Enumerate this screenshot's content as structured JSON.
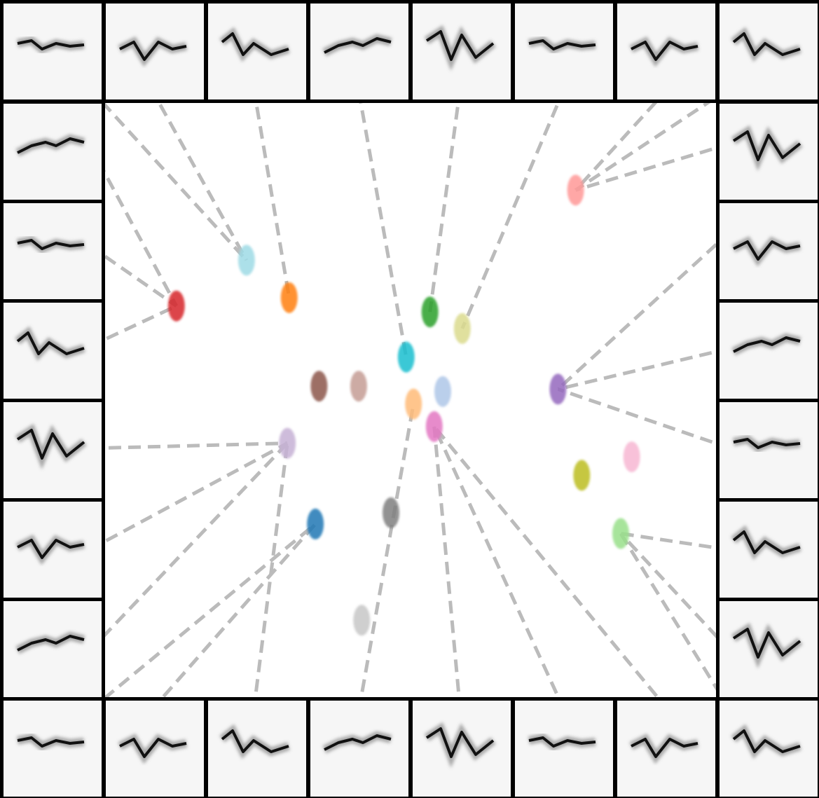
{
  "chart_data": {
    "type": "scatter",
    "xlim": [
      0,
      100
    ],
    "ylim": [
      0,
      100
    ],
    "series": [
      {
        "color": "#ff9896",
        "x": [
          77.2
        ],
        "values": [
          85.1
        ]
      },
      {
        "color": "#9edae5",
        "x": [
          23.2
        ],
        "values": [
          73.3
        ]
      },
      {
        "color": "#ff7f0e",
        "x": [
          30.2
        ],
        "values": [
          67.0
        ]
      },
      {
        "color": "#d62728",
        "x": [
          11.7
        ],
        "values": [
          65.6
        ]
      },
      {
        "color": "#2ca02c",
        "x": [
          53.3
        ],
        "values": [
          64.6
        ]
      },
      {
        "color": "#dbdb8d",
        "x": [
          58.6
        ],
        "values": [
          61.8
        ]
      },
      {
        "color": "#17becf",
        "x": [
          49.4
        ],
        "values": [
          57.0
        ]
      },
      {
        "color": "#8c564b",
        "x": [
          35.1
        ],
        "values": [
          52.1
        ]
      },
      {
        "color": "#c49c94",
        "x": [
          41.6
        ],
        "values": [
          52.1
        ]
      },
      {
        "color": "#aec7e8",
        "x": [
          55.4
        ],
        "values": [
          51.2
        ]
      },
      {
        "color": "#ffbb78",
        "x": [
          50.6
        ],
        "values": [
          49.1
        ]
      },
      {
        "color": "#e377c2",
        "x": [
          54.0
        ],
        "values": [
          45.3
        ]
      },
      {
        "color": "#9467bd",
        "x": [
          74.3
        ],
        "values": [
          51.6
        ]
      },
      {
        "color": "#c5b0d5",
        "x": [
          29.9
        ],
        "values": [
          42.5
        ]
      },
      {
        "color": "#f7b6d2",
        "x": [
          86.4
        ],
        "values": [
          40.2
        ]
      },
      {
        "color": "#bcbd22",
        "x": [
          78.2
        ],
        "values": [
          37.1
        ]
      },
      {
        "color": "#1f77b4",
        "x": [
          34.5
        ],
        "values": [
          28.9
        ]
      },
      {
        "color": "#7f7f7f",
        "x": [
          46.9
        ],
        "values": [
          30.8
        ]
      },
      {
        "color": "#98df8a",
        "x": [
          84.6
        ],
        "values": [
          27.3
        ]
      },
      {
        "color": "#c7c7c7",
        "x": [
          42.1
        ],
        "values": [
          12.7
        ]
      }
    ]
  }
}
